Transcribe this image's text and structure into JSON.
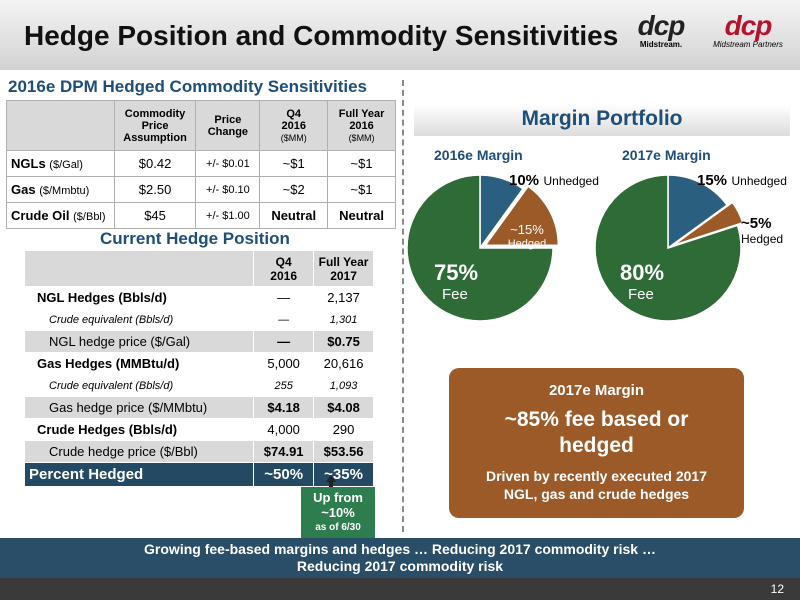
{
  "header": {
    "title": "Hedge Position and Commodity Sensitivities",
    "logo1_mark": "dcp",
    "logo1_sub": "Midstream.",
    "logo2_mark": "dcp",
    "logo2_sub": "Midstream Partners"
  },
  "sensitivities": {
    "title": "2016e DPM Hedged Commodity Sensitivities",
    "headers": {
      "assumption_1": "Commodity",
      "assumption_2": "Price",
      "assumption_3": "Assumption",
      "change_1": "Price",
      "change_2": "Change",
      "q4_1": "Q4",
      "q4_2": "2016",
      "q4_3": "($MM)",
      "fy_1": "Full Year",
      "fy_2": "2016",
      "fy_3": "($MM)"
    },
    "rows": [
      {
        "label": "NGLs",
        "unit": "($/Gal)",
        "price": "$0.42",
        "change": "+/- $0.01",
        "q4": "~$1",
        "fy": "~$1"
      },
      {
        "label": "Gas",
        "unit": "($/Mmbtu)",
        "price": "$2.50",
        "change": "+/- $0.10",
        "q4": "~$2",
        "fy": "~$1"
      },
      {
        "label": "Crude Oil",
        "unit": "($/Bbl)",
        "price": "$45",
        "change": "+/- $1.00",
        "q4": "Neutral",
        "fy": "Neutral"
      }
    ]
  },
  "hedges": {
    "title": "Current Hedge Position",
    "headers": {
      "q4_1": "Q4",
      "q4_2": "2016",
      "fy_1": "Full Year",
      "fy_2": "2017"
    },
    "rows": [
      {
        "label": "NGL Hedges (Bbls/d)",
        "q4": "—",
        "fy": "2,137"
      },
      {
        "label": "Crude equivalent (Bbls/d)",
        "q4": "—",
        "fy": "1,301"
      },
      {
        "label": "NGL hedge price ($/Gal)",
        "q4": "—",
        "fy": "$0.75"
      },
      {
        "label": "Gas Hedges (MMBtu/d)",
        "q4": "5,000",
        "fy": "20,616"
      },
      {
        "label": "Crude equivalent (Bbls/d)",
        "q4": "255",
        "fy": "1,093"
      },
      {
        "label": "Gas hedge price ($/MMbtu)",
        "q4": "$4.18",
        "fy": "$4.08"
      },
      {
        "label": "Crude Hedges (Bbls/d)",
        "q4": "4,000",
        "fy": "290"
      },
      {
        "label": "Crude hedge price ($/Bbl)",
        "q4": "$74.91",
        "fy": "$53.56"
      }
    ],
    "total": {
      "label": "Percent Hedged",
      "q4": "~50%",
      "fy": "~35%"
    },
    "callout": {
      "line1": "Up from",
      "line2": "~10%",
      "line3": "as of 6/30"
    }
  },
  "margin": {
    "title": "Margin Portfolio",
    "pie2016": {
      "label": "2016e Margin",
      "unhedged_pct": "10%",
      "unhedged_word": "Unhedged",
      "hedged_pct": "~15%",
      "hedged_word": "Hedged",
      "fee_pct": "75%",
      "fee_word": "Fee"
    },
    "pie2017": {
      "label": "2017e Margin",
      "unhedged_pct": "15%",
      "unhedged_word": "Unhedged",
      "hedged_pct": "~5%",
      "hedged_word": "Hedged",
      "fee_pct": "80%",
      "fee_word": "Fee"
    },
    "box": {
      "heading": "2017e Margin",
      "main_1": "~85% fee based or",
      "main_2": "hedged",
      "detail_1": "Driven by recently executed 2017",
      "detail_2": "NGL, gas and crude hedges"
    }
  },
  "chart_data": [
    {
      "type": "pie",
      "title": "2016e Margin",
      "categories": [
        "Unhedged",
        "Hedged",
        "Fee"
      ],
      "values": [
        10,
        15,
        75
      ]
    },
    {
      "type": "pie",
      "title": "2017e Margin",
      "categories": [
        "Unhedged",
        "Hedged",
        "Fee"
      ],
      "values": [
        15,
        5,
        80
      ]
    }
  ],
  "colors": {
    "fee": "#2e6b37",
    "unhedged": "#2b5f7f",
    "hedged": "#9c5a28",
    "title_blue": "#1f4e79",
    "footer": "#2a4d68"
  },
  "footer": {
    "line1": "Growing fee-based margins and hedges … Reducing 2017 commodity risk …",
    "line2": "Reducing 2017 commodity risk"
  },
  "page_number": "12"
}
